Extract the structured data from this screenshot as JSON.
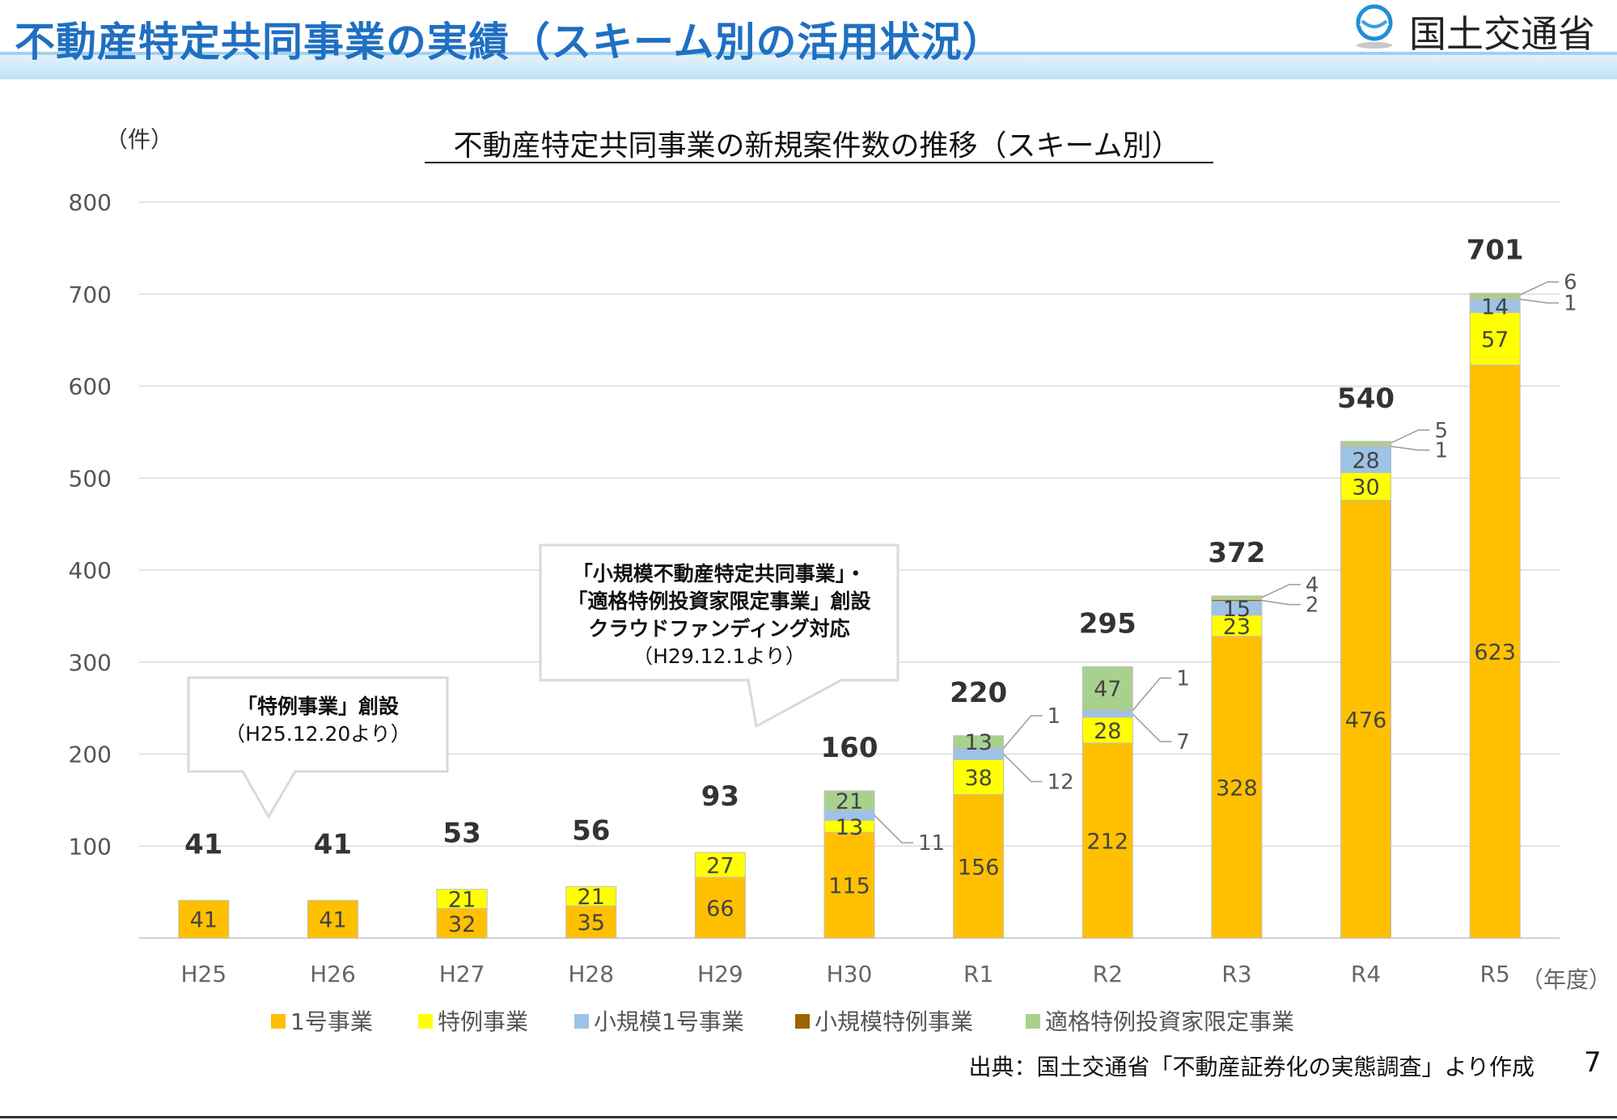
{
  "header": {
    "title": "不動産特定共同事業の実績（スキーム別の活用状況）",
    "ministry": "国土交通省",
    "logo_icon": "mlit-logo-icon",
    "accent_color": "#1f6fc2"
  },
  "chart_data": {
    "type": "bar",
    "stacked": true,
    "title": "不動産特定共同事業の新規案件数の推移（スキーム別）",
    "ylabel": "（件）",
    "xlabel": "（年度）",
    "ylim": [
      0,
      800
    ],
    "yticks": [
      100,
      200,
      300,
      400,
      500,
      600,
      700,
      800
    ],
    "grid": true,
    "legend_position": "bottom",
    "categories": [
      "H25",
      "H26",
      "H27",
      "H28",
      "H29",
      "H30",
      "R1",
      "R2",
      "R3",
      "R4",
      "R5"
    ],
    "series": [
      {
        "name": "1号事業",
        "color": "#ffc000",
        "values": [
          41,
          41,
          32,
          35,
          66,
          115,
          156,
          212,
          328,
          476,
          623
        ]
      },
      {
        "name": "特例事業",
        "color": "#ffff00",
        "values": [
          0,
          0,
          21,
          21,
          27,
          13,
          38,
          28,
          23,
          30,
          57
        ]
      },
      {
        "name": "小規模1号事業",
        "color": "#9dc3e6",
        "values": [
          0,
          0,
          0,
          0,
          0,
          11,
          12,
          7,
          15,
          28,
          14
        ]
      },
      {
        "name": "小規模特例事業",
        "color": "#9c6500",
        "values": [
          0,
          0,
          0,
          0,
          0,
          0,
          1,
          1,
          2,
          1,
          1
        ]
      },
      {
        "name": "適格特例投資家限定事業",
        "color": "#a9d18e",
        "values": [
          0,
          0,
          0,
          0,
          0,
          21,
          13,
          47,
          4,
          5,
          6
        ]
      }
    ],
    "totals": [
      41,
      41,
      53,
      56,
      93,
      160,
      220,
      295,
      372,
      540,
      701
    ],
    "annotations": [
      {
        "lines_bold": [
          "「特例事業」創設"
        ],
        "lines": [
          "（H25.12.20より）"
        ],
        "points_to": "H25"
      },
      {
        "lines_bold": [
          "「小規模不動産特定共同事業」・",
          "「適格特例投資家限定事業」創設",
          "クラウドファンディング対応"
        ],
        "lines": [
          "（H29.12.1より）"
        ],
        "points_to": "H30"
      }
    ]
  },
  "footer": {
    "source": "出典：国土交通省「不動産証券化の実態調査」より作成",
    "page_number": "7"
  }
}
